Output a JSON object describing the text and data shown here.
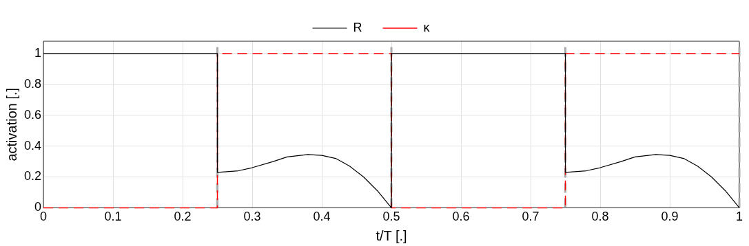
{
  "chart_data": {
    "type": "line",
    "xlabel": "t/T [.]",
    "ylabel": "activation [.]",
    "series": [
      {
        "name": "R",
        "color": "#000000",
        "line_style": "solid",
        "x": [
          0,
          0.25,
          0.25,
          0.28,
          0.3,
          0.33,
          0.35,
          0.38,
          0.4,
          0.42,
          0.44,
          0.46,
          0.48,
          0.5,
          0.5,
          0.75,
          0.75,
          0.78,
          0.8,
          0.83,
          0.85,
          0.88,
          0.9,
          0.92,
          0.94,
          0.96,
          0.98,
          1
        ],
        "values": [
          1,
          1,
          0.23,
          0.24,
          0.26,
          0.3,
          0.33,
          0.345,
          0.34,
          0.32,
          0.27,
          0.2,
          0.11,
          0,
          1,
          1,
          0.23,
          0.24,
          0.26,
          0.3,
          0.33,
          0.345,
          0.34,
          0.32,
          0.27,
          0.2,
          0.11,
          0
        ]
      },
      {
        "name": "κ",
        "color": "#ff0000",
        "line_style": "dashed",
        "x": [
          0,
          0.25,
          0.25,
          0.5,
          0.5,
          0.75,
          0.75,
          1
        ],
        "values": [
          0,
          0,
          1,
          1,
          0,
          0,
          1,
          1
        ]
      }
    ],
    "xlim": [
      0,
      1
    ],
    "xticks": [
      0,
      0.1,
      0.2,
      0.3,
      0.4,
      0.5,
      0.6,
      0.7,
      0.8,
      0.9,
      1
    ],
    "ylim": [
      0,
      1.08
    ],
    "yticks": [
      0,
      0.2,
      0.4,
      0.6,
      0.8,
      1
    ],
    "ref_lines": [
      {
        "axis": "x",
        "value": 0.25,
        "color": "#aaaaaa",
        "line_style": "dashed"
      },
      {
        "axis": "x",
        "value": 0.5,
        "color": "#aaaaaa",
        "line_style": "dashed"
      },
      {
        "axis": "x",
        "value": 0.75,
        "color": "#aaaaaa",
        "line_style": "dashed"
      },
      {
        "axis": "x",
        "value": 1,
        "color": "#aaaaaa",
        "line_style": "dashed"
      }
    ],
    "grid": true,
    "legend": "top",
    "marker": "none"
  }
}
